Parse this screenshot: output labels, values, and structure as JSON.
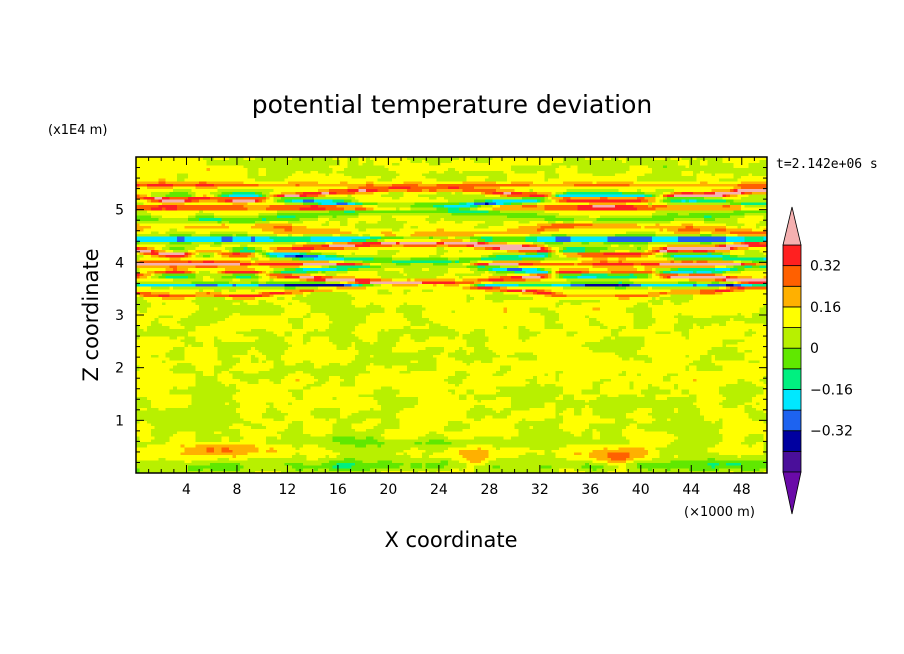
{
  "chart_data": {
    "type": "heatmap",
    "title": "potential temperature deviation",
    "xlabel": "X coordinate",
    "ylabel": "Z coordinate",
    "x_unit": "(×1000 m)",
    "y_unit": "(x1E4 m)",
    "time_label": "t=2.142e+06 s",
    "xlim": [
      0,
      50
    ],
    "ylim": [
      0,
      6
    ],
    "x_ticks": [
      "4",
      "8",
      "12",
      "16",
      "20",
      "24",
      "28",
      "32",
      "36",
      "40",
      "44",
      "48"
    ],
    "y_ticks": [
      "1",
      "2",
      "3",
      "4",
      "5"
    ],
    "colorbar": {
      "levels": [
        -0.48,
        -0.4,
        -0.32,
        -0.24,
        -0.16,
        -0.08,
        0,
        0.08,
        0.16,
        0.24,
        0.32,
        0.4,
        0.48
      ],
      "labels": [
        "0.32",
        "0.16",
        "0",
        "−0.16",
        "−0.32"
      ],
      "label_values": [
        0.32,
        0.16,
        0,
        -0.16,
        -0.32
      ],
      "colors": [
        "#6a0aa8",
        "#4a0f9a",
        "#0000a0",
        "#1d63f0",
        "#00e8ff",
        "#00f080",
        "#60e800",
        "#b8f000",
        "#ffff00",
        "#ffb000",
        "#ff6000",
        "#ff2020",
        "#f5b0b0"
      ]
    },
    "field_description": "stratified layers: strong alternating bands between z=3.4 and 5.4 (x1E4 m), weak green noise below, warm/cool blobs near surface"
  }
}
